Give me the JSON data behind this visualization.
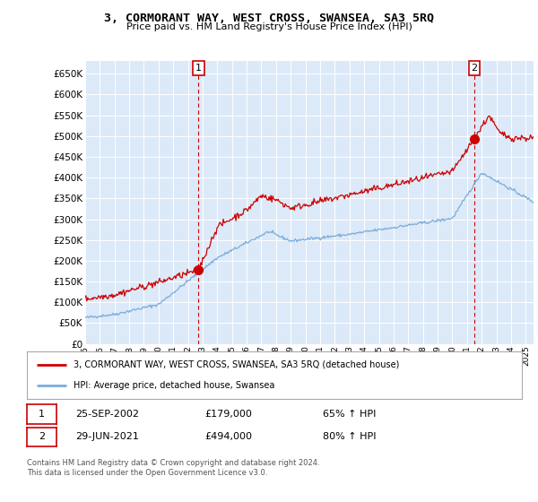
{
  "title": "3, CORMORANT WAY, WEST CROSS, SWANSEA, SA3 5RQ",
  "subtitle": "Price paid vs. HM Land Registry's House Price Index (HPI)",
  "legend_label_red": "3, CORMORANT WAY, WEST CROSS, SWANSEA, SA3 5RQ (detached house)",
  "legend_label_blue": "HPI: Average price, detached house, Swansea",
  "annotation1_date": "25-SEP-2002",
  "annotation1_price": "£179,000",
  "annotation1_hpi": "65% ↑ HPI",
  "annotation2_date": "29-JUN-2021",
  "annotation2_price": "£494,000",
  "annotation2_hpi": "80% ↑ HPI",
  "footer": "Contains HM Land Registry data © Crown copyright and database right 2024.\nThis data is licensed under the Open Government Licence v3.0.",
  "background_color": "#dce9f8",
  "outer_bg_color": "#ffffff",
  "ylim": [
    0,
    680000
  ],
  "yticks": [
    0,
    50000,
    100000,
    150000,
    200000,
    250000,
    300000,
    350000,
    400000,
    450000,
    500000,
    550000,
    600000,
    650000
  ],
  "sale1_year": 2002.73,
  "sale1_price": 179000,
  "sale2_year": 2021.49,
  "sale2_price": 494000,
  "red_color": "#cc0000",
  "blue_color": "#7aaddb",
  "dashed_line_color": "#cc0000"
}
